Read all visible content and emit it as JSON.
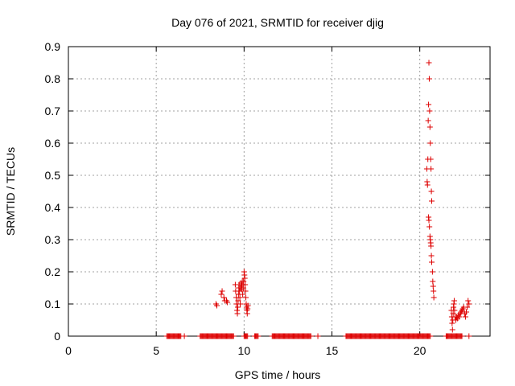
{
  "chart_data": {
    "type": "scatter",
    "title": "Day 076 of 2021, SRMTID for receiver djig",
    "xlabel": "GPS time / hours",
    "ylabel": "SRMTID / TECUs",
    "xlim": [
      0,
      24
    ],
    "ylim": [
      0,
      0.9
    ],
    "xticks": [
      0,
      5,
      10,
      15,
      20
    ],
    "xtick_labels": [
      "0",
      "5",
      "10",
      "15",
      "20"
    ],
    "yticks": [
      0,
      0.1,
      0.2,
      0.3,
      0.4,
      0.5,
      0.6,
      0.7,
      0.8,
      0.9
    ],
    "ytick_labels": [
      "0",
      "0.1",
      "0.2",
      "0.3",
      "0.4",
      "0.5",
      "0.6",
      "0.7",
      "0.8",
      "0.9"
    ],
    "grid": true,
    "legend": "none",
    "marker": "+",
    "colors": {
      "series": "#dd0000",
      "axis": "#000000",
      "grid": "#a0a0a0"
    },
    "series": [
      {
        "name": "SRMTID",
        "points": [
          [
            8.4,
            0.1
          ],
          [
            8.45,
            0.095
          ],
          [
            8.7,
            0.13
          ],
          [
            8.75,
            0.14
          ],
          [
            8.85,
            0.12
          ],
          [
            8.9,
            0.11
          ],
          [
            9.0,
            0.11
          ],
          [
            9.05,
            0.105
          ],
          [
            9.5,
            0.16
          ],
          [
            9.52,
            0.14
          ],
          [
            9.55,
            0.12
          ],
          [
            9.57,
            0.1
          ],
          [
            9.6,
            0.08
          ],
          [
            9.62,
            0.07
          ],
          [
            9.64,
            0.09
          ],
          [
            9.66,
            0.11
          ],
          [
            9.68,
            0.13
          ],
          [
            9.7,
            0.15
          ],
          [
            9.72,
            0.16
          ],
          [
            9.74,
            0.14
          ],
          [
            9.76,
            0.12
          ],
          [
            9.78,
            0.1
          ],
          [
            9.8,
            0.15
          ],
          [
            9.82,
            0.165
          ],
          [
            9.84,
            0.155
          ],
          [
            9.86,
            0.145
          ],
          [
            9.88,
            0.16
          ],
          [
            9.9,
            0.17
          ],
          [
            9.92,
            0.13
          ],
          [
            9.95,
            0.15
          ],
          [
            9.97,
            0.17
          ],
          [
            10.0,
            0.2
          ],
          [
            10.02,
            0.19
          ],
          [
            10.04,
            0.18
          ],
          [
            10.06,
            0.16
          ],
          [
            10.08,
            0.14
          ],
          [
            10.1,
            0.12
          ],
          [
            10.12,
            0.1
          ],
          [
            10.14,
            0.09
          ],
          [
            10.16,
            0.08
          ],
          [
            10.18,
            0.07
          ],
          [
            10.2,
            0.085
          ],
          [
            10.22,
            0.095
          ],
          [
            20.4,
            0.52
          ],
          [
            20.42,
            0.48
          ],
          [
            20.44,
            0.47
          ],
          [
            20.46,
            0.55
          ],
          [
            20.48,
            0.67
          ],
          [
            20.5,
            0.72
          ],
          [
            20.52,
            0.85
          ],
          [
            20.54,
            0.8
          ],
          [
            20.56,
            0.7
          ],
          [
            20.58,
            0.65
          ],
          [
            20.6,
            0.6
          ],
          [
            20.62,
            0.55
          ],
          [
            20.64,
            0.52
          ],
          [
            20.66,
            0.45
          ],
          [
            20.68,
            0.42
          ],
          [
            20.5,
            0.37
          ],
          [
            20.52,
            0.36
          ],
          [
            20.55,
            0.34
          ],
          [
            20.58,
            0.31
          ],
          [
            20.6,
            0.3
          ],
          [
            20.62,
            0.29
          ],
          [
            20.64,
            0.28
          ],
          [
            20.66,
            0.25
          ],
          [
            20.68,
            0.23
          ],
          [
            20.72,
            0.2
          ],
          [
            20.74,
            0.17
          ],
          [
            20.76,
            0.155
          ],
          [
            20.78,
            0.14
          ],
          [
            20.8,
            0.12
          ],
          [
            21.8,
            0.08
          ],
          [
            21.82,
            0.06
          ],
          [
            21.84,
            0.04
          ],
          [
            21.86,
            0.02
          ],
          [
            21.88,
            0.05
          ],
          [
            21.9,
            0.07
          ],
          [
            21.92,
            0.09
          ],
          [
            21.94,
            0.1
          ],
          [
            21.96,
            0.11
          ],
          [
            21.98,
            0.08
          ],
          [
            22.0,
            0.06
          ],
          [
            22.05,
            0.05
          ],
          [
            22.1,
            0.06
          ],
          [
            22.15,
            0.055
          ],
          [
            22.2,
            0.065
          ],
          [
            22.25,
            0.06
          ],
          [
            22.3,
            0.07
          ],
          [
            22.35,
            0.075
          ],
          [
            22.4,
            0.08
          ],
          [
            22.45,
            0.085
          ],
          [
            22.5,
            0.09
          ],
          [
            22.55,
            0.07
          ],
          [
            22.6,
            0.06
          ],
          [
            22.65,
            0.075
          ],
          [
            22.7,
            0.09
          ],
          [
            22.75,
            0.11
          ],
          [
            22.8,
            0.1
          ]
        ],
        "zero_runs": [
          [
            5.6,
            6.4
          ],
          [
            6.6,
            6.6
          ],
          [
            7.5,
            9.4
          ],
          [
            10.0,
            10.2
          ],
          [
            10.6,
            10.8
          ],
          [
            11.6,
            13.8
          ],
          [
            14.2,
            14.2
          ],
          [
            15.8,
            20.6
          ],
          [
            21.5,
            22.4
          ],
          [
            22.8,
            22.8
          ]
        ]
      }
    ]
  }
}
